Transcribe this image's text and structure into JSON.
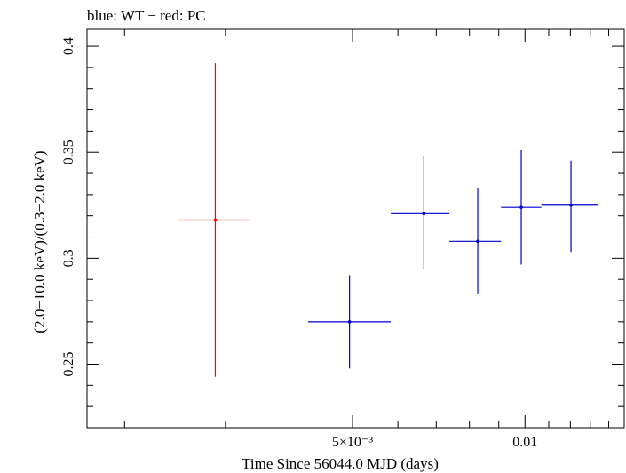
{
  "chart_data": {
    "type": "scatter",
    "title": "blue: WT − red: PC",
    "xlabel": "Time Since 56044.0 MJD (days)",
    "ylabel": "(2.0−10.0 keV)/(0.3−2.0 keV)",
    "x_scale": "log",
    "xlim": [
      0.00172,
      0.0149
    ],
    "ylim": [
      0.22,
      0.408
    ],
    "x_ticks": [
      {
        "value": 0.005,
        "label": "5×10⁻³"
      },
      {
        "value": 0.01,
        "label": "0.01"
      }
    ],
    "y_ticks": [
      {
        "value": 0.25,
        "label": "0.25"
      },
      {
        "value": 0.3,
        "label": "0.3"
      },
      {
        "value": 0.35,
        "label": "0.35"
      },
      {
        "value": 0.4,
        "label": "0.4"
      }
    ],
    "grid": false,
    "series": [
      {
        "name": "PC",
        "color": "#ff0000",
        "points": [
          {
            "x": 0.00288,
            "xlo": 0.00249,
            "xhi": 0.0033,
            "y": 0.318,
            "ylo": 0.244,
            "yhi": 0.392
          }
        ]
      },
      {
        "name": "WT",
        "color": "#0000cc",
        "points": [
          {
            "x": 0.00494,
            "xlo": 0.00418,
            "xhi": 0.00583,
            "y": 0.27,
            "ylo": 0.248,
            "yhi": 0.292
          },
          {
            "x": 0.00666,
            "xlo": 0.00583,
            "xhi": 0.00738,
            "y": 0.321,
            "ylo": 0.295,
            "yhi": 0.348
          },
          {
            "x": 0.00827,
            "xlo": 0.00738,
            "xhi": 0.00908,
            "y": 0.308,
            "ylo": 0.283,
            "yhi": 0.333
          },
          {
            "x": 0.00985,
            "xlo": 0.00908,
            "xhi": 0.01068,
            "y": 0.324,
            "ylo": 0.297,
            "yhi": 0.351
          },
          {
            "x": 0.01203,
            "xlo": 0.01068,
            "xhi": 0.01343,
            "y": 0.325,
            "ylo": 0.303,
            "yhi": 0.346
          }
        ]
      }
    ]
  }
}
